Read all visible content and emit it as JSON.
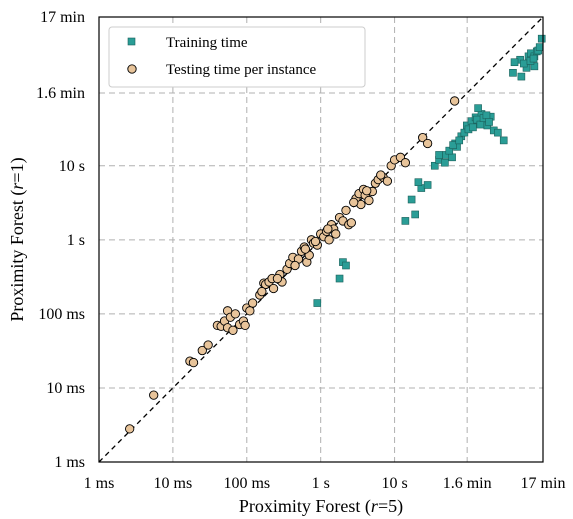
{
  "chart_data": {
    "type": "scatter",
    "scale": "log",
    "xlabel": {
      "main": "Proximity Forest (",
      "italic": "r",
      "tail": "=5)"
    },
    "ylabel": {
      "main": "Proximity Forest (",
      "italic": "r",
      "tail": "=1)"
    },
    "xlim_seconds": [
      0.001,
      1020
    ],
    "ylim_seconds": [
      0.001,
      1020
    ],
    "ticks": [
      {
        "value": 0.001,
        "label": "1 ms"
      },
      {
        "value": 0.01,
        "label": "10 ms"
      },
      {
        "value": 0.1,
        "label": "100 ms"
      },
      {
        "value": 1,
        "label": "1 s"
      },
      {
        "value": 10,
        "label": "10 s"
      },
      {
        "value": 96,
        "label": "1.6 min"
      },
      {
        "value": 1020,
        "label": "17 min"
      }
    ],
    "grid": true,
    "diagonal": "y = x",
    "legend_position": "top-left",
    "series": [
      {
        "name": "Training time",
        "marker": "square",
        "color": "#2a9d96",
        "points": [
          [
            0.9,
            0.14
          ],
          [
            2.0,
            0.5
          ],
          [
            2.2,
            0.45
          ],
          [
            1.8,
            0.3
          ],
          [
            14,
            1.8
          ],
          [
            17,
            3.5
          ],
          [
            19,
            2.2
          ],
          [
            23,
            5
          ],
          [
            21,
            6
          ],
          [
            28,
            5.5
          ],
          [
            35,
            10
          ],
          [
            40,
            12
          ],
          [
            48,
            11
          ],
          [
            50,
            14
          ],
          [
            60,
            13
          ],
          [
            66,
            20
          ],
          [
            70,
            18
          ],
          [
            80,
            25
          ],
          [
            95,
            35
          ],
          [
            110,
            40
          ],
          [
            125,
            45
          ],
          [
            140,
            37
          ],
          [
            150,
            50
          ],
          [
            135,
            60
          ],
          [
            165,
            40
          ],
          [
            180,
            35
          ],
          [
            200,
            46
          ],
          [
            220,
            30
          ],
          [
            250,
            28
          ],
          [
            300,
            22
          ],
          [
            40,
            14
          ],
          [
            55,
            16
          ],
          [
            62,
            19
          ],
          [
            75,
            22
          ],
          [
            88,
            28
          ],
          [
            100,
            31
          ],
          [
            115,
            33
          ],
          [
            130,
            42
          ],
          [
            145,
            36
          ],
          [
            160,
            44
          ],
          [
            175,
            48
          ],
          [
            190,
            39
          ],
          [
            400,
            180
          ],
          [
            520,
            160
          ],
          [
            610,
            210
          ],
          [
            500,
            270
          ],
          [
            650,
            300
          ],
          [
            700,
            330
          ],
          [
            780,
            300
          ],
          [
            840,
            350
          ],
          [
            880,
            360
          ],
          [
            920,
            400
          ],
          [
            780,
            220
          ],
          [
            980,
            520
          ],
          [
            420,
            250
          ],
          [
            560,
            240
          ],
          [
            690,
            260
          ],
          [
            760,
            280
          ]
        ]
      },
      {
        "name": "Testing time per instance",
        "marker": "circle",
        "color": "#e8c49a",
        "points": [
          [
            0.0026,
            0.0028
          ],
          [
            0.0055,
            0.008
          ],
          [
            0.017,
            0.023
          ],
          [
            0.019,
            0.022
          ],
          [
            0.025,
            0.032
          ],
          [
            0.03,
            0.038
          ],
          [
            0.04,
            0.07
          ],
          [
            0.045,
            0.068
          ],
          [
            0.05,
            0.08
          ],
          [
            0.055,
            0.11
          ],
          [
            0.06,
            0.09
          ],
          [
            0.07,
            0.1
          ],
          [
            0.08,
            0.072
          ],
          [
            0.09,
            0.08
          ],
          [
            0.095,
            0.07
          ],
          [
            0.1,
            0.12
          ],
          [
            0.12,
            0.14
          ],
          [
            0.15,
            0.18
          ],
          [
            0.17,
            0.26
          ],
          [
            0.18,
            0.25
          ],
          [
            0.2,
            0.27
          ],
          [
            0.22,
            0.3
          ],
          [
            0.23,
            0.22
          ],
          [
            0.28,
            0.34
          ],
          [
            0.3,
            0.27
          ],
          [
            0.35,
            0.4
          ],
          [
            0.38,
            0.48
          ],
          [
            0.42,
            0.58
          ],
          [
            0.5,
            0.55
          ],
          [
            0.55,
            0.7
          ],
          [
            0.6,
            0.8
          ],
          [
            0.65,
            0.5
          ],
          [
            0.7,
            0.62
          ],
          [
            0.75,
            1.0
          ],
          [
            0.8,
            0.9
          ],
          [
            0.9,
            0.85
          ],
          [
            1.0,
            1.2
          ],
          [
            1.1,
            1.1
          ],
          [
            1.2,
            1.3
          ],
          [
            1.3,
            1.0
          ],
          [
            1.4,
            1.6
          ],
          [
            1.5,
            1.4
          ],
          [
            1.6,
            1.2
          ],
          [
            1.8,
            2.0
          ],
          [
            2.0,
            1.8
          ],
          [
            2.2,
            2.5
          ],
          [
            2.4,
            1.6
          ],
          [
            2.6,
            1.7
          ],
          [
            3.0,
            3.6
          ],
          [
            3.3,
            4.2
          ],
          [
            3.5,
            3.0
          ],
          [
            3.8,
            4.8
          ],
          [
            4.0,
            4.0
          ],
          [
            4.5,
            3.4
          ],
          [
            5.0,
            4.5
          ],
          [
            5.5,
            5.8
          ],
          [
            6.0,
            6.5
          ],
          [
            7.0,
            7.0
          ],
          [
            8.0,
            6.2
          ],
          [
            9.0,
            10
          ],
          [
            10,
            12
          ],
          [
            12,
            13
          ],
          [
            14,
            11
          ],
          [
            24,
            24
          ],
          [
            28,
            20
          ],
          [
            65,
            75
          ],
          [
            0.055,
            0.065
          ],
          [
            0.065,
            0.06
          ],
          [
            0.11,
            0.11
          ],
          [
            0.16,
            0.2
          ],
          [
            0.26,
            0.3
          ],
          [
            0.45,
            0.45
          ],
          [
            0.62,
            0.75
          ],
          [
            0.85,
            0.95
          ],
          [
            1.25,
            1.4
          ],
          [
            2.8,
            3.2
          ],
          [
            4.2,
            4.6
          ],
          [
            6.5,
            7.5
          ]
        ]
      }
    ]
  }
}
